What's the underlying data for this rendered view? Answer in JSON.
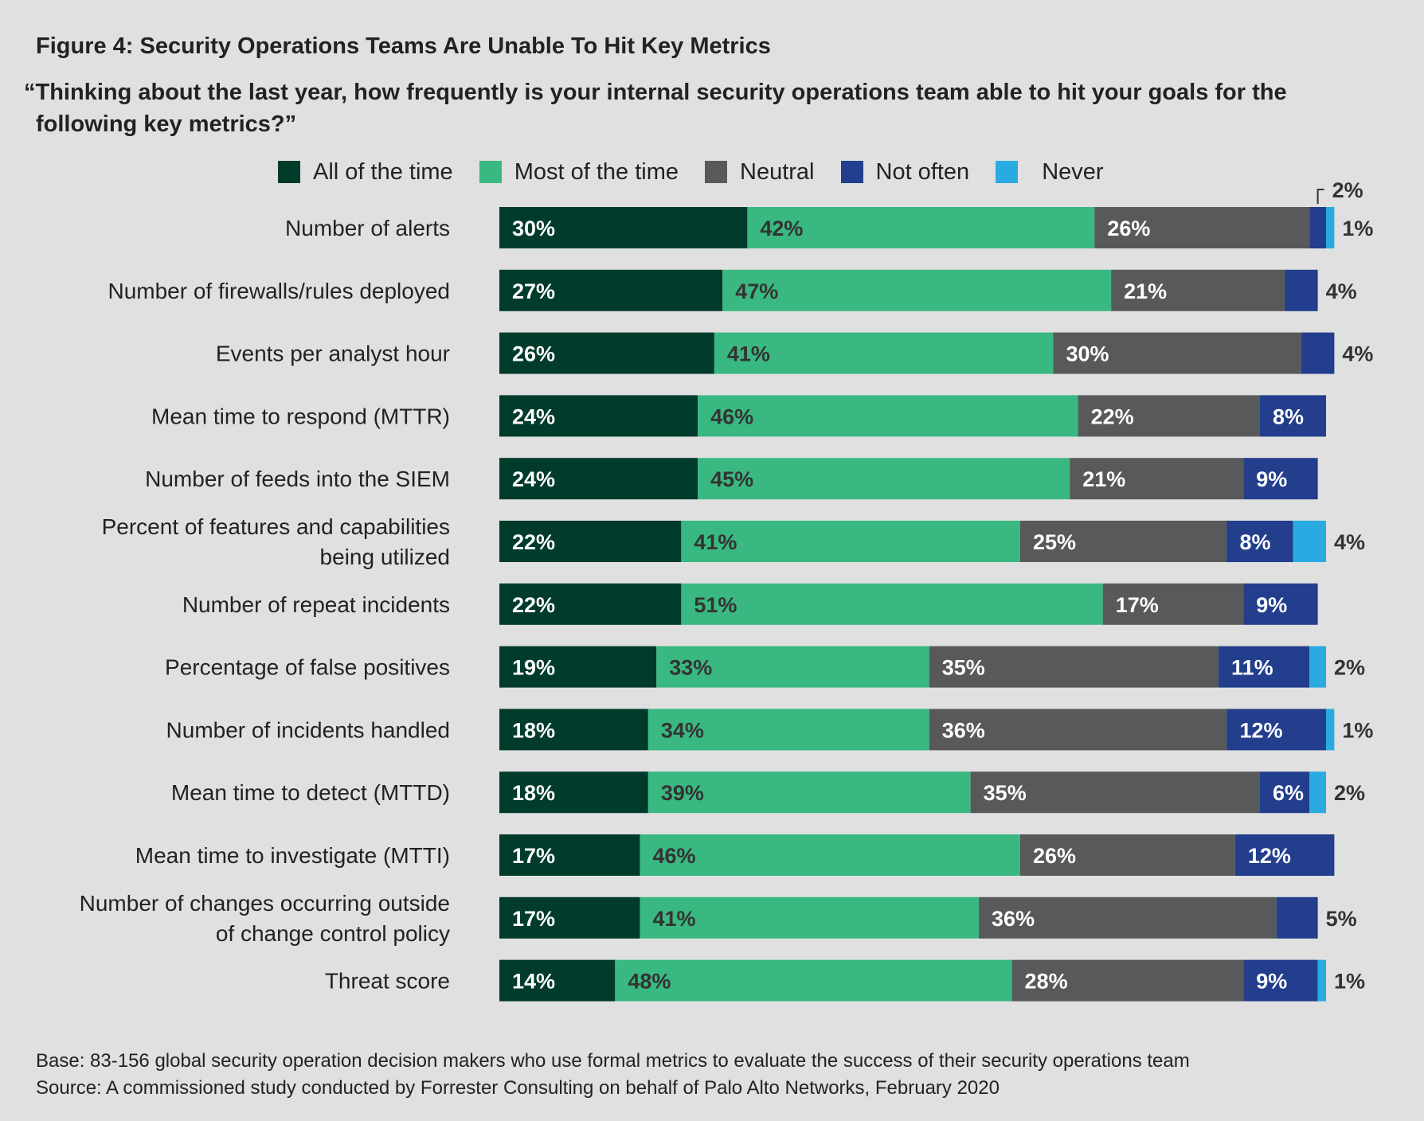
{
  "figure_title": "Figure 4: Security Operations Teams Are Unable To Hit Key Metrics",
  "question_line1": "“Thinking about the last year, how frequently is your internal security operations team able to hit your goals for the",
  "question_line2": "following key metrics?”",
  "footer": {
    "base": "Base: 83-156 global security operation decision makers who use formal metrics to evaluate the success of their security operations team",
    "source": "Source: A commissioned study conducted by Forrester Consulting on behalf of Palo Alto Networks, February 2020"
  },
  "chart_data": {
    "type": "bar",
    "orientation": "horizontal",
    "stacked": true,
    "legend_position": "top",
    "grid": false,
    "categories": [
      [
        "Number of alerts"
      ],
      [
        "Number of firewalls/rules deployed"
      ],
      [
        "Events per analyst hour"
      ],
      [
        "Mean time to respond (MTTR)"
      ],
      [
        "Number of feeds into the SIEM"
      ],
      [
        "Percent of features and capabilities",
        "being utilized"
      ],
      [
        "Number of repeat incidents"
      ],
      [
        "Percentage of false positives"
      ],
      [
        "Number of incidents handled"
      ],
      [
        "Mean time to detect (MTTD)"
      ],
      [
        "Mean time to investigate (MTTI)"
      ],
      [
        "Number of changes occurring outside",
        "of change control policy"
      ],
      [
        "Threat score"
      ]
    ],
    "series": [
      {
        "name": "All of the time",
        "color": "#003b2c",
        "label_color": "#ffffff",
        "values": [
          30,
          27,
          26,
          24,
          24,
          22,
          22,
          19,
          18,
          18,
          17,
          17,
          14
        ]
      },
      {
        "name": "Most of the time",
        "color": "#3ab881",
        "label_color": "#333333",
        "values": [
          42,
          47,
          41,
          46,
          45,
          41,
          51,
          33,
          34,
          39,
          46,
          41,
          48
        ]
      },
      {
        "name": "Neutral",
        "color": "#58595b",
        "label_color": "#ffffff",
        "values": [
          26,
          21,
          30,
          22,
          21,
          25,
          17,
          35,
          36,
          35,
          26,
          36,
          28
        ]
      },
      {
        "name": "Not often",
        "color": "#223e8c",
        "label_color": "#ffffff",
        "values": [
          2,
          4,
          4,
          8,
          9,
          8,
          9,
          11,
          12,
          6,
          12,
          5,
          9
        ]
      },
      {
        "name": "Never",
        "color": "#29abe2",
        "label_color": "#ffffff",
        "values": [
          1,
          0,
          0,
          0,
          0,
          4,
          0,
          2,
          1,
          2,
          0,
          0,
          1
        ]
      }
    ],
    "unit": "%",
    "outside_labels": [
      {
        "row": 0,
        "series": 3,
        "text": "2%",
        "callout": true
      },
      {
        "row": 0,
        "series": 4,
        "text": "1%"
      },
      {
        "row": 1,
        "series": 3,
        "text": "4%"
      },
      {
        "row": 2,
        "series": 3,
        "text": "4%"
      },
      {
        "row": 5,
        "series": 4,
        "text": "4%"
      },
      {
        "row": 7,
        "series": 4,
        "text": "2%"
      },
      {
        "row": 8,
        "series": 4,
        "text": "1%"
      },
      {
        "row": 9,
        "series": 4,
        "text": "2%"
      },
      {
        "row": 11,
        "series": 3,
        "text": "5%"
      },
      {
        "row": 12,
        "series": 4,
        "text": "1%"
      }
    ],
    "hidden_inside_labels": [
      [
        0,
        3
      ],
      [
        0,
        4
      ],
      [
        1,
        3
      ],
      [
        2,
        3
      ],
      [
        5,
        4
      ],
      [
        7,
        4
      ],
      [
        8,
        4
      ],
      [
        9,
        4
      ],
      [
        11,
        3
      ],
      [
        12,
        4
      ]
    ]
  }
}
